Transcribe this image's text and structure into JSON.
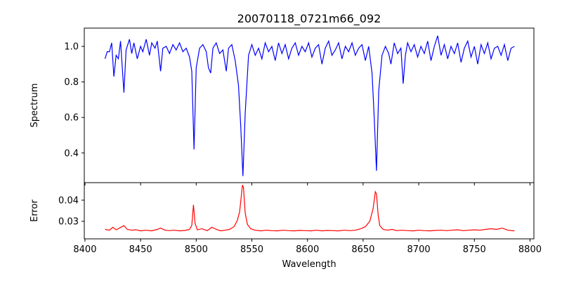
{
  "chart_data": [
    {
      "type": "line",
      "title": "20070118_0721m66_092",
      "xlabel": "",
      "ylabel": "Spectrum",
      "xlim": [
        8399.4,
        8803.5
      ],
      "ylim": [
        0.233,
        1.103
      ],
      "xticks": [
        8400,
        8450,
        8500,
        8550,
        8600,
        8650,
        8700,
        8750,
        8800
      ],
      "yticks": [
        0.4,
        0.6,
        0.8,
        1.0
      ],
      "ytick_labels": [
        "0.4",
        "0.6",
        "0.8",
        "1.0"
      ],
      "color": "#0000ff",
      "x": [
        8418,
        8420,
        8422,
        8424,
        8426,
        8428,
        8430,
        8432,
        8435,
        8437,
        8440,
        8442,
        8444,
        8447,
        8450,
        8452,
        8455,
        8458,
        8460,
        8463,
        8465,
        8468,
        8470,
        8473,
        8476,
        8479,
        8482,
        8485,
        8488,
        8491,
        8494,
        8496,
        8498,
        8500,
        8503,
        8506,
        8509,
        8511,
        8513,
        8515,
        8518,
        8521,
        8524,
        8527,
        8529,
        8532,
        8535,
        8538,
        8540,
        8542,
        8544,
        8547,
        8550,
        8553,
        8556,
        8559,
        8562,
        8565,
        8568,
        8571,
        8574,
        8577,
        8580,
        8583,
        8586,
        8589,
        8592,
        8595,
        8598,
        8601,
        8604,
        8607,
        8610,
        8613,
        8616,
        8619,
        8622,
        8625,
        8628,
        8631,
        8634,
        8637,
        8640,
        8643,
        8646,
        8649,
        8652,
        8655,
        8658,
        8660,
        8662,
        8664,
        8667,
        8670,
        8673,
        8675,
        8678,
        8681,
        8684,
        8686,
        8688,
        8690,
        8693,
        8696,
        8699,
        8702,
        8705,
        8708,
        8711,
        8714,
        8717,
        8720,
        8723,
        8726,
        8729,
        8732,
        8735,
        8738,
        8741,
        8744,
        8747,
        8750,
        8753,
        8756,
        8759,
        8762,
        8765,
        8768,
        8771,
        8774,
        8777,
        8780,
        8783,
        8786
      ],
      "y": [
        0.93,
        0.97,
        0.97,
        1.02,
        0.83,
        0.95,
        0.93,
        1.03,
        0.74,
        0.98,
        1.04,
        0.96,
        1.02,
        0.93,
        1.0,
        0.97,
        1.04,
        0.95,
        1.02,
        0.99,
        1.03,
        0.86,
        0.99,
        1.0,
        0.96,
        1.01,
        0.98,
        1.02,
        0.97,
        0.99,
        0.94,
        0.86,
        0.42,
        0.88,
        0.99,
        1.01,
        0.97,
        0.88,
        0.85,
        0.99,
        1.02,
        0.96,
        0.98,
        0.86,
        0.99,
        1.01,
        0.92,
        0.78,
        0.55,
        0.27,
        0.62,
        0.95,
        1.01,
        0.95,
        0.99,
        0.93,
        1.02,
        0.97,
        1.0,
        0.92,
        1.02,
        0.96,
        1.01,
        0.93,
        0.99,
        1.02,
        0.95,
        1.0,
        0.97,
        1.02,
        0.94,
        0.99,
        1.01,
        0.9,
        0.99,
        1.03,
        0.95,
        0.98,
        1.02,
        0.93,
        1.0,
        0.97,
        1.02,
        0.95,
        0.99,
        1.01,
        0.92,
        1.0,
        0.85,
        0.6,
        0.3,
        0.75,
        0.95,
        1.0,
        0.96,
        0.9,
        1.02,
        0.96,
        0.99,
        0.79,
        0.95,
        1.02,
        0.97,
        1.01,
        0.94,
        1.0,
        0.96,
        1.03,
        0.92,
        1.0,
        1.06,
        0.95,
        1.01,
        0.93,
        1.0,
        0.96,
        1.02,
        0.91,
        0.99,
        1.03,
        0.94,
        1.0,
        0.9,
        1.01,
        0.96,
        1.02,
        0.93,
        0.99,
        1.0,
        0.95,
        1.01,
        0.92,
        0.99,
        1.0
      ]
    },
    {
      "type": "line",
      "title": "",
      "xlabel": "Wavelength",
      "ylabel": "Error",
      "xlim": [
        8399.4,
        8803.5
      ],
      "ylim": [
        0.0217,
        0.0483
      ],
      "xticks": [
        8400,
        8450,
        8500,
        8550,
        8600,
        8650,
        8700,
        8750,
        8800
      ],
      "xtick_labels": [
        "8400",
        "8450",
        "8500",
        "8550",
        "8600",
        "8650",
        "8700",
        "8750",
        "8800"
      ],
      "yticks": [
        0.03,
        0.04
      ],
      "ytick_labels": [
        "0.03",
        "0.04"
      ],
      "color": "#ff0000",
      "x": [
        8418,
        8422,
        8425,
        8428,
        8431,
        8435,
        8438,
        8442,
        8446,
        8450,
        8455,
        8460,
        8465,
        8468,
        8472,
        8476,
        8480,
        8485,
        8490,
        8494,
        8496,
        8497.5,
        8499,
        8501,
        8505,
        8510,
        8514,
        8518,
        8522,
        8526,
        8530,
        8534,
        8537,
        8539,
        8540.5,
        8541.5,
        8542.5,
        8544,
        8546,
        8549,
        8553,
        8558,
        8563,
        8568,
        8573,
        8578,
        8583,
        8588,
        8593,
        8598,
        8603,
        8608,
        8613,
        8618,
        8623,
        8628,
        8633,
        8638,
        8643,
        8648,
        8652,
        8656,
        8659,
        8661,
        8662,
        8663.5,
        8665,
        8668,
        8672,
        8676,
        8680,
        8685,
        8690,
        8695,
        8700,
        8705,
        8710,
        8715,
        8720,
        8725,
        8730,
        8735,
        8740,
        8745,
        8750,
        8755,
        8760,
        8765,
        8770,
        8775,
        8780,
        8786
      ],
      "y": [
        0.0262,
        0.0258,
        0.0272,
        0.026,
        0.0268,
        0.028,
        0.0262,
        0.0258,
        0.026,
        0.0255,
        0.0258,
        0.0255,
        0.0262,
        0.0268,
        0.0258,
        0.0256,
        0.0258,
        0.0255,
        0.0257,
        0.0262,
        0.028,
        0.0378,
        0.029,
        0.026,
        0.0265,
        0.0256,
        0.0272,
        0.0262,
        0.0255,
        0.0258,
        0.0262,
        0.0275,
        0.0305,
        0.0345,
        0.042,
        0.0472,
        0.046,
        0.034,
        0.0285,
        0.0265,
        0.0258,
        0.0255,
        0.0258,
        0.0256,
        0.0255,
        0.0258,
        0.0256,
        0.0255,
        0.0257,
        0.0256,
        0.0255,
        0.0258,
        0.0255,
        0.0257,
        0.0256,
        0.0255,
        0.0258,
        0.0256,
        0.0258,
        0.0265,
        0.0275,
        0.03,
        0.036,
        0.044,
        0.043,
        0.033,
        0.028,
        0.0262,
        0.0258,
        0.0262,
        0.0256,
        0.0258,
        0.0256,
        0.0255,
        0.0258,
        0.0256,
        0.0255,
        0.0257,
        0.0258,
        0.0256,
        0.0258,
        0.026,
        0.0256,
        0.0258,
        0.026,
        0.0258,
        0.0262,
        0.0265,
        0.0262,
        0.0268,
        0.0258,
        0.0255
      ]
    }
  ]
}
